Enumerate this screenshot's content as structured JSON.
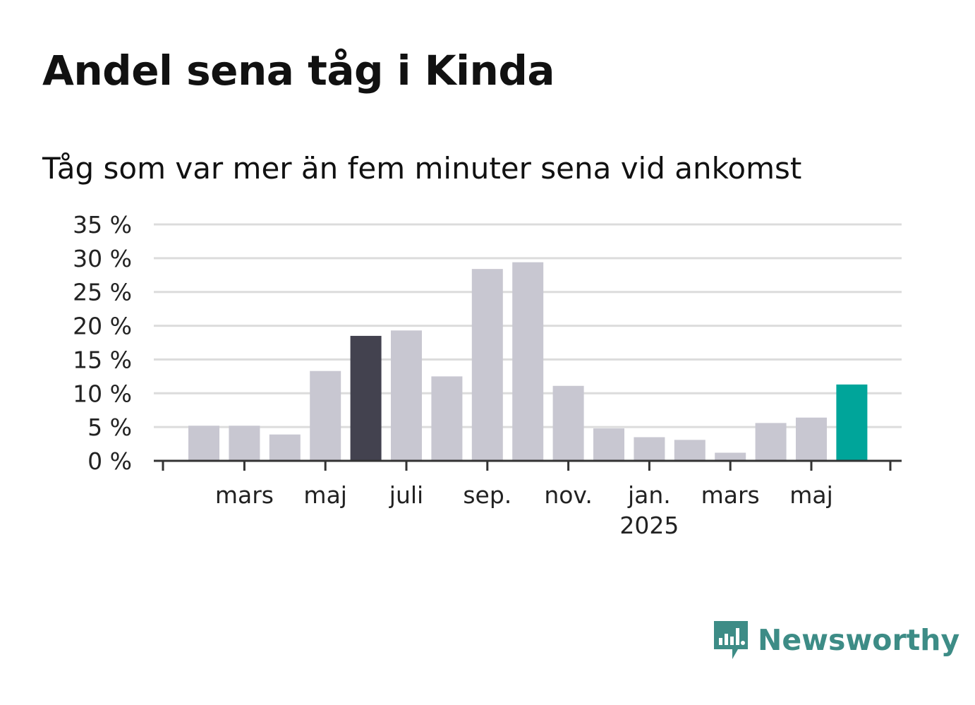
{
  "chart_data": {
    "type": "bar",
    "title": "Andel sena tåg i Kinda",
    "subtitle": "Tåg som var mer än fem minuter sena vid ankomst",
    "ylim": [
      0,
      35
    ],
    "yticks": [
      0,
      5,
      10,
      15,
      20,
      25,
      30,
      35
    ],
    "ytick_labels": [
      "0 %",
      "5 %",
      "10 %",
      "15 %",
      "20 %",
      "25 %",
      "30 %",
      "35 %"
    ],
    "grid": true,
    "categories": [
      "2024-02",
      "2024-03",
      "2024-04",
      "2024-05",
      "2024-06",
      "2024-07",
      "2024-08",
      "2024-09",
      "2024-10",
      "2024-11",
      "2024-12",
      "2025-01",
      "2025-02",
      "2025-03",
      "2025-04",
      "2025-05",
      "2025-06"
    ],
    "values": [
      5.2,
      5.2,
      3.9,
      13.3,
      18.5,
      19.3,
      12.5,
      28.4,
      29.4,
      11.1,
      4.8,
      3.5,
      3.1,
      1.2,
      5.6,
      6.4,
      11.3
    ],
    "highlight": {
      "2024-06": "#43424f",
      "2025-06": "#00a59a"
    },
    "default_color": "#c8c7d1",
    "x_tick_labels": [
      {
        "category": "2024-03",
        "label": "mars"
      },
      {
        "category": "2024-05",
        "label": "maj"
      },
      {
        "category": "2024-07",
        "label": "juli"
      },
      {
        "category": "2024-09",
        "label": "sep."
      },
      {
        "category": "2024-11",
        "label": "nov."
      },
      {
        "category": "2025-01",
        "label": "jan.",
        "sublabel": "2025"
      },
      {
        "category": "2025-03",
        "label": "mars"
      },
      {
        "category": "2025-05",
        "label": "maj"
      }
    ]
  },
  "branding": {
    "name": "Newsworthy",
    "color": "#3d8c86",
    "icon": "newsworthy-logo-icon"
  }
}
